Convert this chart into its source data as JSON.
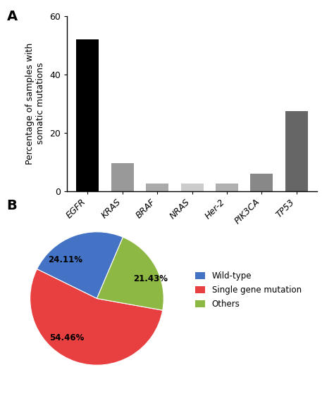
{
  "bar_categories": [
    "EGFR",
    "KRAS",
    "BRAF",
    "NRAS",
    "Her-2",
    "PIK3CA",
    "TP53"
  ],
  "bar_values": [
    52.0,
    9.5,
    2.5,
    2.5,
    2.5,
    6.0,
    27.5
  ],
  "bar_colors": [
    "#000000",
    "#999999",
    "#aaaaaa",
    "#cccccc",
    "#b0b0b0",
    "#888888",
    "#666666"
  ],
  "bar_ylabel": "Percentage of samples with\nsomatic mutations",
  "bar_ylim": [
    0,
    60
  ],
  "bar_yticks": [
    0,
    20,
    40,
    60
  ],
  "panel_a_label": "A",
  "panel_b_label": "B",
  "pie_values": [
    24.11,
    54.46,
    21.43
  ],
  "pie_labels": [
    "24.11%",
    "54.46%",
    "21.43%"
  ],
  "pie_colors": [
    "#4472c4",
    "#e84040",
    "#8db843"
  ],
  "pie_legend_labels": [
    "Wild-type",
    "Single gene mutation",
    "Others"
  ],
  "pie_startangle": 67
}
